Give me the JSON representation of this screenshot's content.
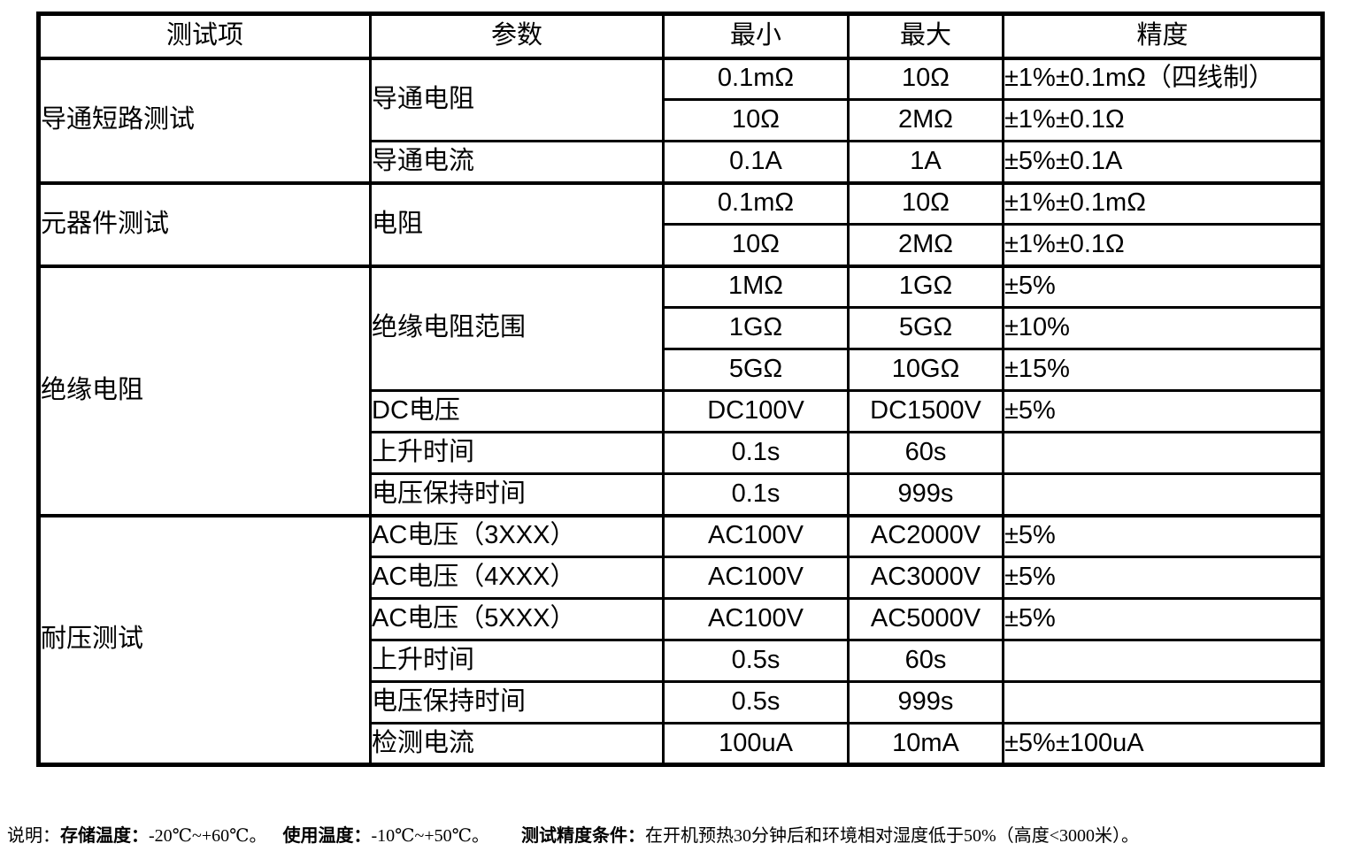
{
  "table": {
    "headers": {
      "test_item": "测试项",
      "parameter": "参数",
      "min": "最小",
      "max": "最大",
      "accuracy": "精度"
    },
    "rows": [
      {
        "group": "导通短路测试",
        "parameter": "导通电阻",
        "min": "0.1mΩ",
        "max": "10Ω",
        "accuracy": "±1%±0.1mΩ（四线制）"
      },
      {
        "min": "10Ω",
        "max": "2MΩ",
        "accuracy": "±1%±0.1Ω"
      },
      {
        "parameter": "导通电流",
        "min": "0.1A",
        "max": "1A",
        "accuracy": "±5%±0.1A"
      },
      {
        "group": "元器件测试",
        "parameter": "电阻",
        "min": "0.1mΩ",
        "max": "10Ω",
        "accuracy": "±1%±0.1mΩ"
      },
      {
        "min": "10Ω",
        "max": "2MΩ",
        "accuracy": "±1%±0.1Ω"
      },
      {
        "group": "绝缘电阻",
        "parameter": "绝缘电阻范围",
        "min": "1MΩ",
        "max": "1GΩ",
        "accuracy": "±5%"
      },
      {
        "min": "1GΩ",
        "max": "5GΩ",
        "accuracy": "±10%"
      },
      {
        "min": "5GΩ",
        "max": "10GΩ",
        "accuracy": "±15%"
      },
      {
        "parameter": "DC电压",
        "min": "DC100V",
        "max": "DC1500V",
        "accuracy": "±5%"
      },
      {
        "parameter": "上升时间",
        "min": "0.1s",
        "max": "60s",
        "accuracy": ""
      },
      {
        "parameter": "电压保持时间",
        "min": "0.1s",
        "max": "999s",
        "accuracy": ""
      },
      {
        "group": "耐压测试",
        "parameter": "AC电压（3XXX）",
        "min": "AC100V",
        "max": "AC2000V",
        "accuracy": "±5%"
      },
      {
        "parameter": "AC电压（4XXX）",
        "min": "AC100V",
        "max": "AC3000V",
        "accuracy": "±5%"
      },
      {
        "parameter": "AC电压（5XXX）",
        "min": "AC100V",
        "max": "AC5000V",
        "accuracy": "±5%"
      },
      {
        "parameter": "上升时间",
        "min": "0.5s",
        "max": "60s",
        "accuracy": ""
      },
      {
        "parameter": "电压保持时间",
        "min": "0.5s",
        "max": "999s",
        "accuracy": ""
      },
      {
        "parameter": "检测电流",
        "min": "100uA",
        "max": "10mA",
        "accuracy": "±5%±100uA"
      }
    ]
  },
  "note": {
    "prefix": "说明：",
    "segments": [
      {
        "label": "存储温度：",
        "value": "-20℃~+60℃。"
      },
      {
        "label": "使用温度：",
        "value": "-10℃~+50℃。"
      },
      {
        "label": "测试精度条件：",
        "value": "在开机预热30分钟后和环境相对湿度低于50%（高度<3000米）。"
      }
    ]
  }
}
